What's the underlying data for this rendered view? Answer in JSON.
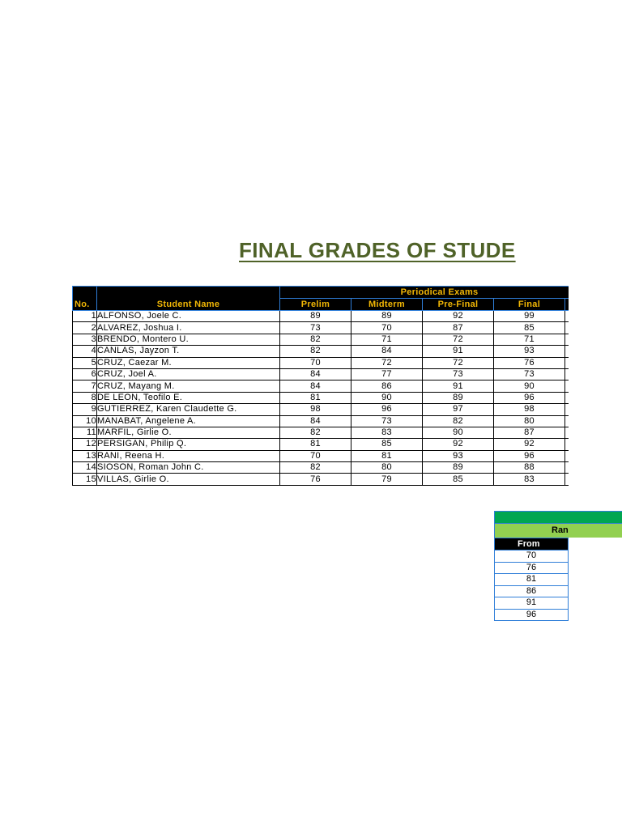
{
  "title": "FINAL GRADES OF STUDE",
  "grades_table": {
    "group_header": "Periodical Exams",
    "col_no": "No.",
    "col_name": "Student Name",
    "exam_columns": [
      "Prelim",
      "Midterm",
      "Pre-Final",
      "Final"
    ],
    "rows": [
      {
        "no": "1",
        "name": "ALFONSO, Joele C.",
        "scores": [
          "89",
          "89",
          "92",
          "99"
        ]
      },
      {
        "no": "2",
        "name": "ALVAREZ, Joshua I.",
        "scores": [
          "73",
          "70",
          "87",
          "85"
        ]
      },
      {
        "no": "3",
        "name": "BRENDO, Montero U.",
        "scores": [
          "82",
          "71",
          "72",
          "71"
        ]
      },
      {
        "no": "4",
        "name": "CANLAS, Jayzon T.",
        "scores": [
          "82",
          "84",
          "91",
          "93"
        ]
      },
      {
        "no": "5",
        "name": "CRUZ, Caezar M.",
        "scores": [
          "70",
          "72",
          "72",
          "76"
        ]
      },
      {
        "no": "6",
        "name": "CRUZ, Joel A.",
        "scores": [
          "84",
          "77",
          "73",
          "73"
        ]
      },
      {
        "no": "7",
        "name": "CRUZ, Mayang M.",
        "scores": [
          "84",
          "86",
          "91",
          "90"
        ]
      },
      {
        "no": "8",
        "name": "DE LEON, Teofilo E.",
        "scores": [
          "81",
          "90",
          "89",
          "96"
        ]
      },
      {
        "no": "9",
        "name": "GUTIERREZ, Karen Claudette G.",
        "scores": [
          "98",
          "96",
          "97",
          "98"
        ]
      },
      {
        "no": "10",
        "name": "MANABAT, Angelene A.",
        "scores": [
          "84",
          "73",
          "82",
          "80"
        ]
      },
      {
        "no": "11",
        "name": "MARFIL, Girlie O.",
        "scores": [
          "82",
          "83",
          "90",
          "87"
        ]
      },
      {
        "no": "12",
        "name": "PERSIGAN, Philip Q.",
        "scores": [
          "81",
          "85",
          "92",
          "92"
        ]
      },
      {
        "no": "13",
        "name": "RANI, Reena H.",
        "scores": [
          "70",
          "81",
          "93",
          "96"
        ]
      },
      {
        "no": "14",
        "name": "SIOSON, Roman John C.",
        "scores": [
          "82",
          "80",
          "89",
          "88"
        ]
      },
      {
        "no": "15",
        "name": "VILLAS, Girlie O.",
        "scores": [
          "76",
          "79",
          "85",
          "83"
        ]
      }
    ]
  },
  "range_table": {
    "label": "Ran",
    "col_from": "From",
    "from_values": [
      "70",
      "76",
      "81",
      "86",
      "91",
      "96"
    ]
  },
  "colors": {
    "title": "#4f6228",
    "header_bg": "#000000",
    "header_text": "#f2b705",
    "grid_blue": "#2f7ed8",
    "range_green": "#00a651",
    "range_light_green": "#92d050"
  }
}
